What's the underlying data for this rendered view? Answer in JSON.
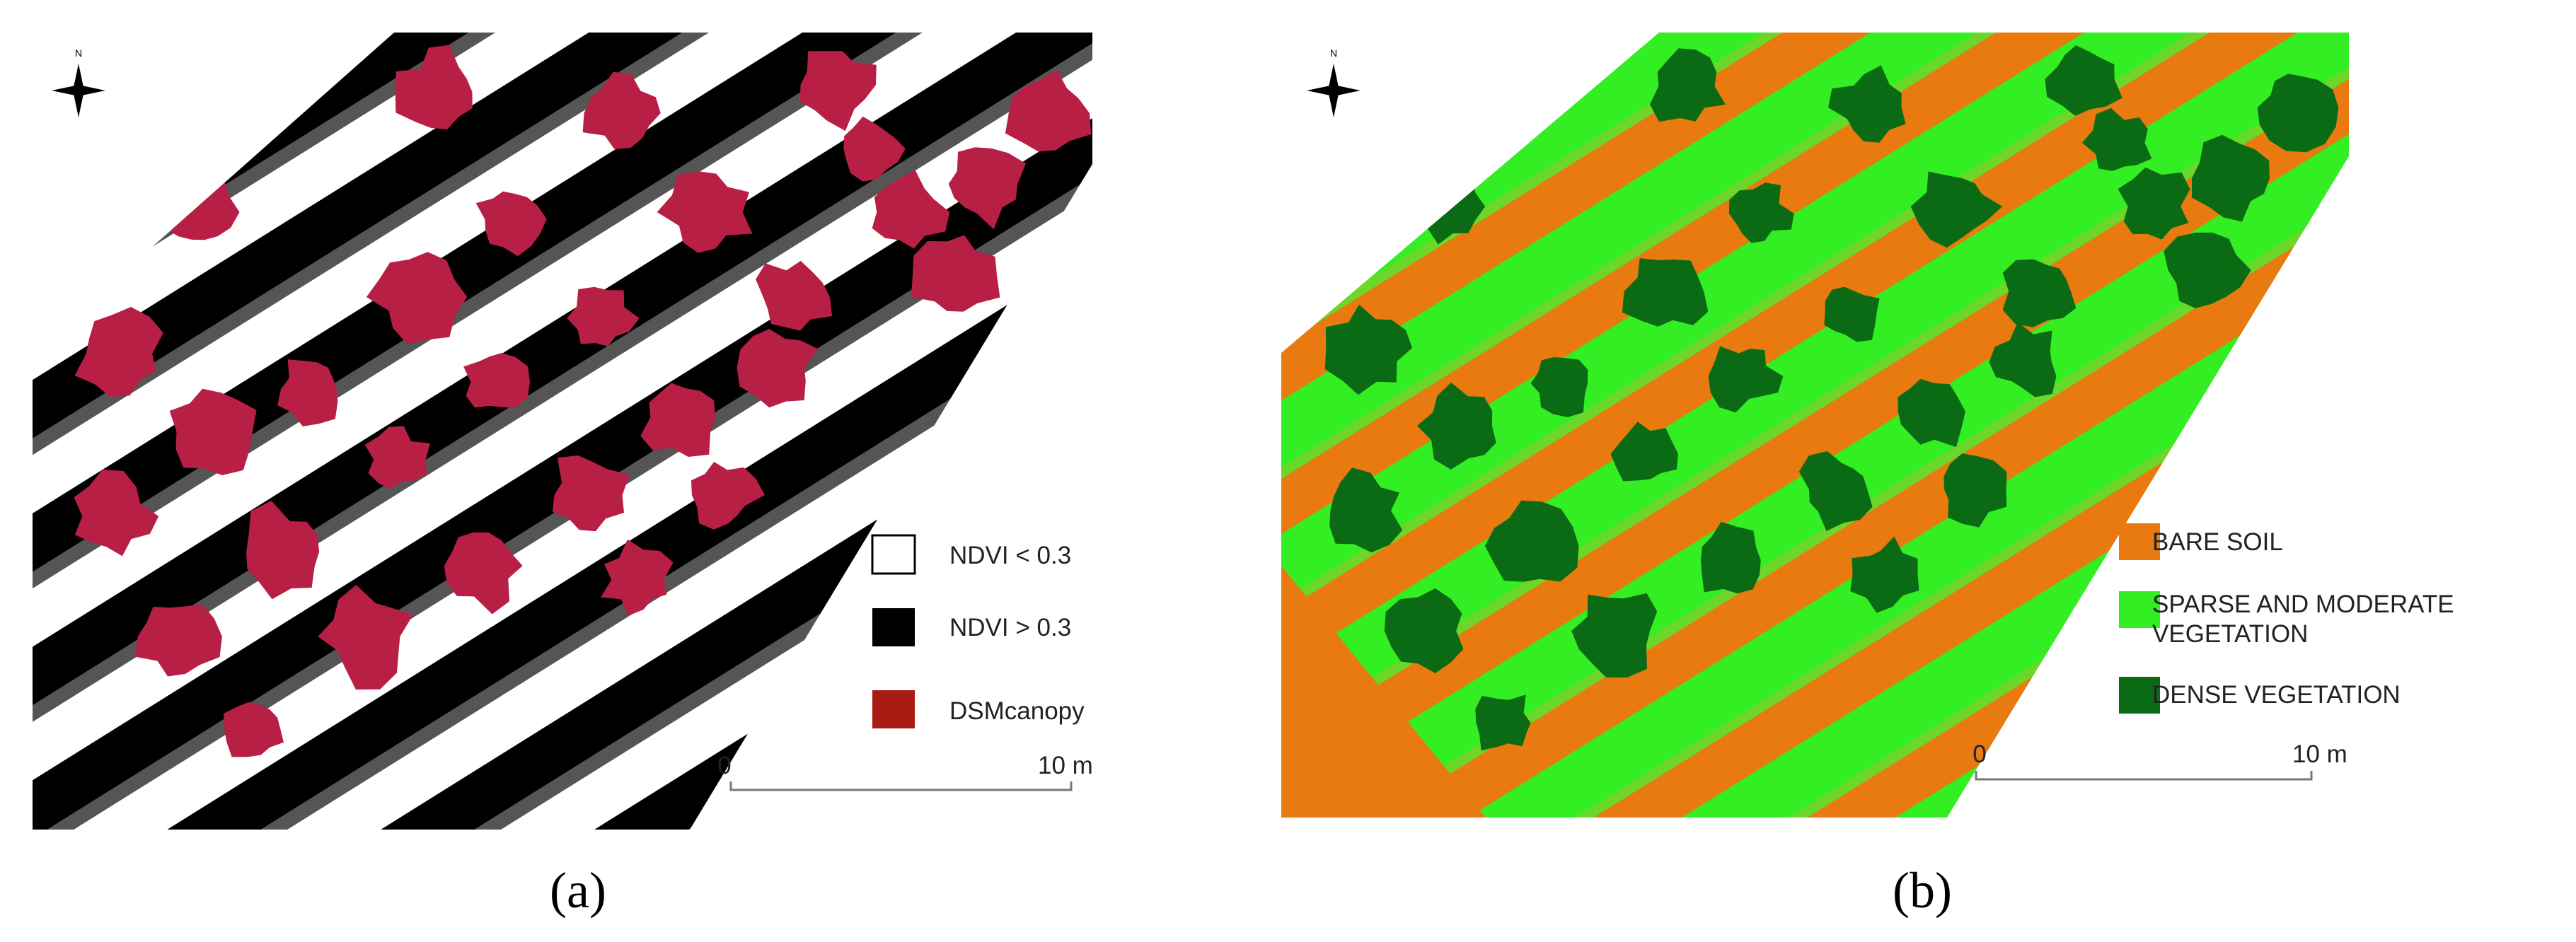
{
  "panels": [
    {
      "caption": "(a)",
      "north": "N",
      "legend": [
        {
          "label": "NDVI < 0.3"
        },
        {
          "label": "NDVI > 0.3"
        },
        {
          "label": "DSMcanopy"
        }
      ],
      "scale": {
        "start": "0",
        "end": "10 m"
      }
    },
    {
      "caption": "(b)",
      "north": "N",
      "legend": [
        {
          "label": "BARE SOIL"
        },
        {
          "label": "SPARSE AND MODERATE VEGETATION"
        },
        {
          "label": "DENSE VEGETATION"
        }
      ],
      "scale": {
        "start": "0",
        "end": "10 m"
      }
    }
  ]
}
